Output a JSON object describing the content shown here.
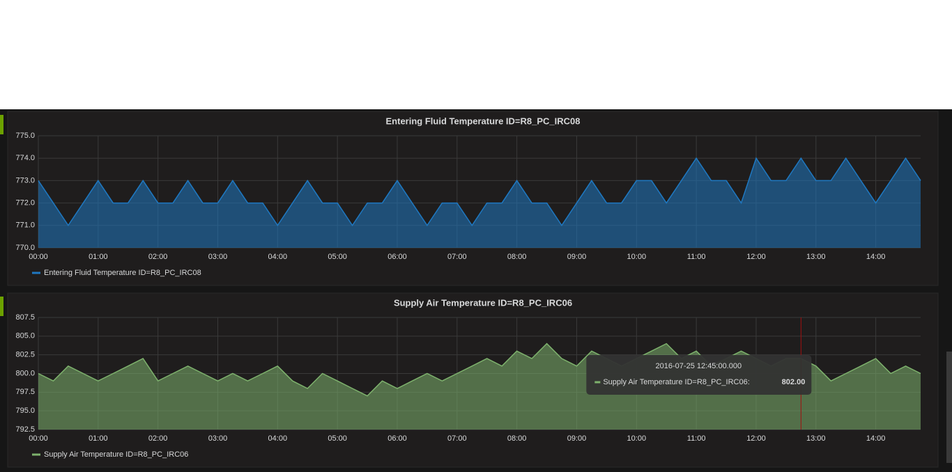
{
  "chart_data": [
    {
      "type": "area",
      "title": "Entering Fluid Temperature ID=R8_PC_IRC08",
      "x": [
        "00:00",
        "00:15",
        "00:30",
        "00:45",
        "01:00",
        "01:15",
        "01:30",
        "01:45",
        "02:00",
        "02:15",
        "02:30",
        "02:45",
        "03:00",
        "03:15",
        "03:30",
        "03:45",
        "04:00",
        "04:15",
        "04:30",
        "04:45",
        "05:00",
        "05:15",
        "05:30",
        "05:45",
        "06:00",
        "06:15",
        "06:30",
        "06:45",
        "07:00",
        "07:15",
        "07:30",
        "07:45",
        "08:00",
        "08:15",
        "08:30",
        "08:45",
        "09:00",
        "09:15",
        "09:30",
        "09:45",
        "10:00",
        "10:15",
        "10:30",
        "10:45",
        "11:00",
        "11:15",
        "11:30",
        "11:45",
        "12:00",
        "12:15",
        "12:30",
        "12:45",
        "13:00",
        "13:15",
        "13:30",
        "13:45",
        "14:00",
        "14:15",
        "14:30",
        "14:45"
      ],
      "series": [
        {
          "name": "Entering Fluid Temperature ID=R8_PC_IRC08",
          "color": "#1f78c1",
          "values": [
            773,
            772,
            771,
            772,
            773,
            772,
            772,
            773,
            772,
            772,
            773,
            772,
            772,
            773,
            772,
            772,
            771,
            772,
            773,
            772,
            772,
            771,
            772,
            772,
            773,
            772,
            771,
            772,
            772,
            771,
            772,
            772,
            773,
            772,
            772,
            771,
            772,
            773,
            772,
            772,
            773,
            773,
            772,
            773,
            774,
            773,
            773,
            772,
            774,
            773,
            773,
            774,
            773,
            773,
            774,
            773,
            772,
            773,
            774,
            773
          ]
        }
      ],
      "xlim": [
        "00:00",
        "14:45"
      ],
      "xticks": [
        "00:00",
        "01:00",
        "02:00",
        "03:00",
        "04:00",
        "05:00",
        "06:00",
        "07:00",
        "08:00",
        "09:00",
        "10:00",
        "11:00",
        "12:00",
        "13:00",
        "14:00"
      ],
      "ylim": [
        770,
        775
      ],
      "yticks": [
        {
          "value": 770,
          "label": "770.0"
        },
        {
          "value": 771,
          "label": "771.0"
        },
        {
          "value": 772,
          "label": "772.0"
        },
        {
          "value": 773,
          "label": "773.0"
        },
        {
          "value": 774,
          "label": "774.0"
        },
        {
          "value": 775,
          "label": "775.0"
        }
      ],
      "grid": true,
      "legend": "bottom"
    },
    {
      "type": "area",
      "title": "Supply Air Temperature ID=R8_PC_IRC06",
      "x": [
        "00:00",
        "00:15",
        "00:30",
        "00:45",
        "01:00",
        "01:15",
        "01:30",
        "01:45",
        "02:00",
        "02:15",
        "02:30",
        "02:45",
        "03:00",
        "03:15",
        "03:30",
        "03:45",
        "04:00",
        "04:15",
        "04:30",
        "04:45",
        "05:00",
        "05:15",
        "05:30",
        "05:45",
        "06:00",
        "06:15",
        "06:30",
        "06:45",
        "07:00",
        "07:15",
        "07:30",
        "07:45",
        "08:00",
        "08:15",
        "08:30",
        "08:45",
        "09:00",
        "09:15",
        "09:30",
        "09:45",
        "10:00",
        "10:15",
        "10:30",
        "10:45",
        "11:00",
        "11:15",
        "11:30",
        "11:45",
        "12:00",
        "12:15",
        "12:30",
        "12:45",
        "13:00",
        "13:15",
        "13:30",
        "13:45",
        "14:00",
        "14:15",
        "14:30",
        "14:45"
      ],
      "series": [
        {
          "name": "Supply Air Temperature ID=R8_PC_IRC06",
          "color": "#7eb26d",
          "values": [
            800,
            799,
            801,
            800,
            799,
            800,
            801,
            802,
            799,
            800,
            801,
            800,
            799,
            800,
            799,
            800,
            801,
            799,
            798,
            800,
            799,
            798,
            797,
            799,
            798,
            799,
            800,
            799,
            800,
            801,
            802,
            801,
            803,
            802,
            804,
            802,
            801,
            803,
            802,
            801,
            802,
            803,
            804,
            802,
            803,
            801,
            802,
            803,
            802,
            801,
            802,
            802,
            801,
            799,
            800,
            801,
            802,
            800,
            801,
            800
          ]
        }
      ],
      "xlim": [
        "00:00",
        "14:45"
      ],
      "xticks": [
        "00:00",
        "01:00",
        "02:00",
        "03:00",
        "04:00",
        "05:00",
        "06:00",
        "07:00",
        "08:00",
        "09:00",
        "10:00",
        "11:00",
        "12:00",
        "13:00",
        "14:00"
      ],
      "ylim": [
        792.5,
        807.5
      ],
      "yticks": [
        792.5,
        {
          "value": 795,
          "label": "795.0"
        },
        797.5,
        {
          "value": 800,
          "label": "800.0"
        },
        802.5,
        {
          "value": 805,
          "label": "805.0"
        },
        807.5
      ],
      "grid": true,
      "legend": "bottom",
      "tooltip": {
        "time": "2016-07-25 12:45:00.000",
        "series": "Supply Air Temperature ID=R8_PC_IRC06:",
        "value": 802,
        "value_label": "802.00"
      }
    }
  ]
}
